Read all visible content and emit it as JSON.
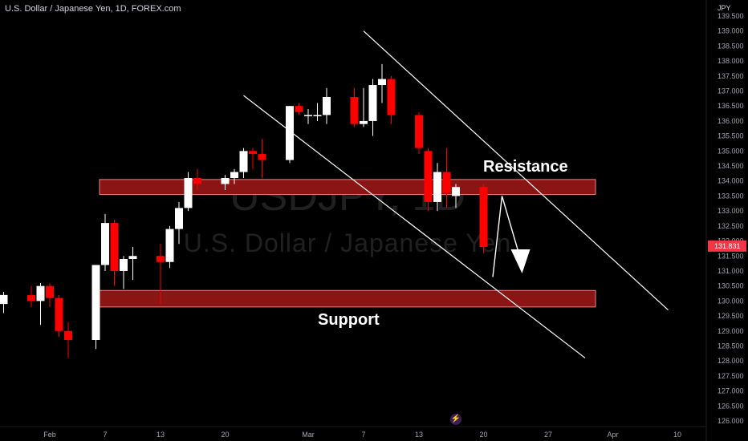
{
  "header": {
    "symbol_title": "U.S. Dollar / Japanese Yen, 1D, FOREX.com"
  },
  "watermark": {
    "ticker": "USDJPY, 1D",
    "name": "U.S. Dollar / Japanese Yen"
  },
  "colors": {
    "background": "#000000",
    "bull_candle": "#ffffff",
    "bear_candle": "#ff0000",
    "zone_fill": "#8b1515",
    "zone_border": "#f08080",
    "axis_text": "#a3a6af",
    "price_label": "#f23645"
  },
  "bottom_icon": "lightning-logo-icon",
  "chart_data": {
    "type": "candlestick",
    "unit": "JPY",
    "ylim": [
      126.0,
      139.5
    ],
    "y_ticks": [
      "139.500",
      "139.000",
      "138.500",
      "138.000",
      "137.500",
      "137.000",
      "136.500",
      "136.000",
      "135.500",
      "135.000",
      "134.500",
      "134.000",
      "133.500",
      "133.000",
      "132.500",
      "132.000",
      "131.500",
      "131.000",
      "130.500",
      "130.000",
      "129.500",
      "129.000",
      "128.500",
      "128.000",
      "127.500",
      "127.000",
      "126.500",
      "126.000"
    ],
    "x_ticks": [
      {
        "label": "Feb",
        "date": "2023-02-01"
      },
      {
        "label": "7",
        "date": "2023-02-07"
      },
      {
        "label": "13",
        "date": "2023-02-13"
      },
      {
        "label": "20",
        "date": "2023-02-20"
      },
      {
        "label": "Mar",
        "date": "2023-03-01"
      },
      {
        "label": "7",
        "date": "2023-03-07"
      },
      {
        "label": "13",
        "date": "2023-03-13"
      },
      {
        "label": "20",
        "date": "2023-03-20"
      },
      {
        "label": "27",
        "date": "2023-03-27"
      },
      {
        "label": "Apr",
        "date": "2023-04-03"
      },
      {
        "label": "10",
        "date": "2023-04-10"
      }
    ],
    "candles": [
      {
        "date": "2023-01-27",
        "o": 129.9,
        "h": 130.3,
        "l": 129.6,
        "c": 130.2
      },
      {
        "date": "2023-01-30",
        "o": 130.2,
        "h": 130.5,
        "l": 129.8,
        "c": 130.0
      },
      {
        "date": "2023-01-31",
        "o": 130.0,
        "h": 130.6,
        "l": 129.2,
        "c": 130.5
      },
      {
        "date": "2023-02-01",
        "o": 130.5,
        "h": 130.6,
        "l": 129.8,
        "c": 130.1
      },
      {
        "date": "2023-02-02",
        "o": 130.1,
        "h": 130.2,
        "l": 128.8,
        "c": 129.0
      },
      {
        "date": "2023-02-03",
        "o": 129.0,
        "h": 129.3,
        "l": 128.1,
        "c": 128.7
      },
      {
        "date": "2023-02-06",
        "o": 128.7,
        "h": 131.2,
        "l": 128.4,
        "c": 131.2
      },
      {
        "date": "2023-02-07",
        "o": 131.2,
        "h": 132.9,
        "l": 131.0,
        "c": 132.6
      },
      {
        "date": "2023-02-08",
        "o": 132.6,
        "h": 132.7,
        "l": 130.5,
        "c": 131.0
      },
      {
        "date": "2023-02-09",
        "o": 131.0,
        "h": 131.5,
        "l": 130.4,
        "c": 131.4
      },
      {
        "date": "2023-02-10",
        "o": 131.4,
        "h": 131.8,
        "l": 130.7,
        "c": 131.5
      },
      {
        "date": "2023-02-13",
        "o": 131.5,
        "h": 131.9,
        "l": 129.9,
        "c": 131.3
      },
      {
        "date": "2023-02-14",
        "o": 131.3,
        "h": 132.5,
        "l": 131.1,
        "c": 132.4
      },
      {
        "date": "2023-02-15",
        "o": 132.4,
        "h": 133.3,
        "l": 131.9,
        "c": 133.1
      },
      {
        "date": "2023-02-16",
        "o": 133.1,
        "h": 134.3,
        "l": 133.0,
        "c": 134.1
      },
      {
        "date": "2023-02-17",
        "o": 134.1,
        "h": 134.4,
        "l": 133.7,
        "c": 133.9
      },
      {
        "date": "2023-02-20",
        "o": 133.9,
        "h": 134.2,
        "l": 133.7,
        "c": 134.1
      },
      {
        "date": "2023-02-21",
        "o": 134.1,
        "h": 134.4,
        "l": 133.9,
        "c": 134.3
      },
      {
        "date": "2023-02-22",
        "o": 134.3,
        "h": 135.1,
        "l": 134.1,
        "c": 135.0
      },
      {
        "date": "2023-02-23",
        "o": 135.0,
        "h": 135.1,
        "l": 134.4,
        "c": 134.9
      },
      {
        "date": "2023-02-24",
        "o": 134.9,
        "h": 135.4,
        "l": 134.1,
        "c": 134.7
      },
      {
        "date": "2023-02-27",
        "o": 134.7,
        "h": 136.5,
        "l": 134.6,
        "c": 136.5
      },
      {
        "date": "2023-02-28",
        "o": 136.5,
        "h": 136.6,
        "l": 136.2,
        "c": 136.3
      },
      {
        "date": "2023-03-01",
        "o": 136.2,
        "h": 136.4,
        "l": 135.9,
        "c": 136.2
      },
      {
        "date": "2023-03-02",
        "o": 136.2,
        "h": 136.6,
        "l": 136.0,
        "c": 136.2
      },
      {
        "date": "2023-03-03",
        "o": 136.2,
        "h": 137.1,
        "l": 135.9,
        "c": 136.8
      },
      {
        "date": "2023-03-06",
        "o": 136.8,
        "h": 137.1,
        "l": 135.8,
        "c": 135.9
      },
      {
        "date": "2023-03-07",
        "o": 135.9,
        "h": 137.1,
        "l": 135.8,
        "c": 136.0
      },
      {
        "date": "2023-03-08",
        "o": 136.0,
        "h": 137.4,
        "l": 135.5,
        "c": 137.2
      },
      {
        "date": "2023-03-09",
        "o": 137.2,
        "h": 137.9,
        "l": 136.6,
        "c": 137.4
      },
      {
        "date": "2023-03-10",
        "o": 137.4,
        "h": 137.5,
        "l": 135.9,
        "c": 136.2
      },
      {
        "date": "2023-03-13",
        "o": 136.2,
        "h": 136.3,
        "l": 134.9,
        "c": 135.1
      },
      {
        "date": "2023-03-14",
        "o": 135.0,
        "h": 135.1,
        "l": 133.0,
        "c": 133.3
      },
      {
        "date": "2023-03-15",
        "o": 133.3,
        "h": 134.6,
        "l": 133.0,
        "c": 134.3
      },
      {
        "date": "2023-03-16",
        "o": 134.3,
        "h": 135.1,
        "l": 133.1,
        "c": 133.6
      },
      {
        "date": "2023-03-17",
        "o": 133.5,
        "h": 133.9,
        "l": 133.1,
        "c": 133.8
      },
      {
        "date": "2023-03-20",
        "o": 133.8,
        "h": 133.9,
        "l": 131.6,
        "c": 131.8
      }
    ],
    "last_price": "131.831",
    "annotations": [
      "Resistance",
      "Support"
    ],
    "zones": [
      {
        "name": "Resistance",
        "from": 133.55,
        "to": 134.05
      },
      {
        "name": "Support",
        "from": 129.8,
        "to": 130.35
      }
    ],
    "channel_lines": [
      {
        "start": {
          "date": "2023-02-22",
          "price": 136.85
        },
        "end": {
          "date": "2023-03-31",
          "price": 128.1
        }
      },
      {
        "start": {
          "date": "2023-03-07",
          "price": 139.0
        },
        "end": {
          "date": "2023-04-09",
          "price": 129.7
        }
      }
    ],
    "projection": [
      {
        "date": "2023-03-21",
        "price": 130.8
      },
      {
        "date": "2023-03-22",
        "price": 133.5
      },
      {
        "date": "2023-03-24",
        "price": 131.4
      }
    ]
  }
}
